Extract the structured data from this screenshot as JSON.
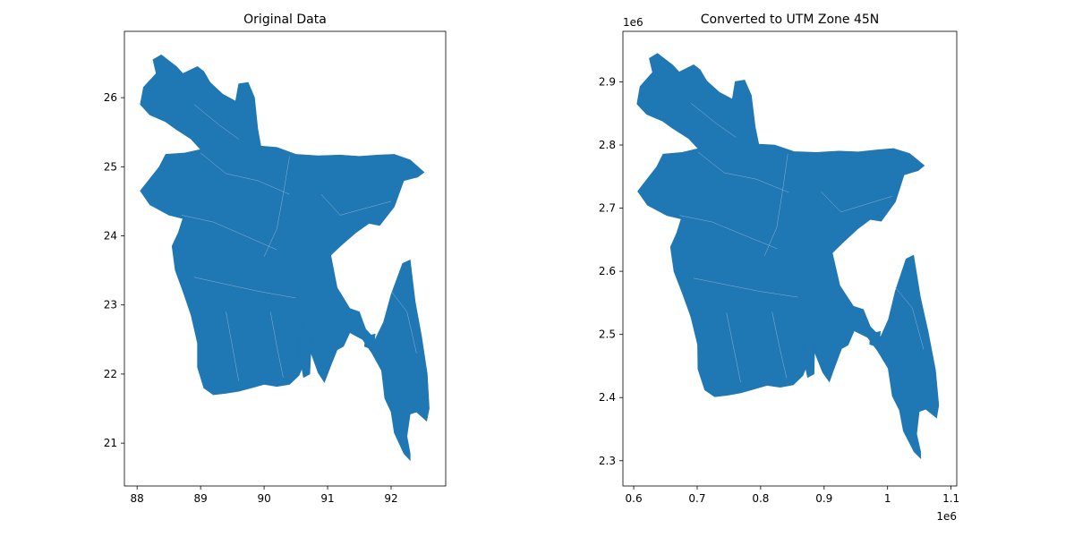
{
  "chart_data": [
    {
      "type": "map",
      "title": "Original Data",
      "xlabel": "",
      "ylabel": "",
      "xlim": [
        87.8,
        92.86
      ],
      "ylim": [
        20.38,
        26.96
      ],
      "xticks": [
        88,
        89,
        90,
        91,
        92
      ],
      "yticks": [
        21,
        22,
        23,
        24,
        25,
        26
      ],
      "offset_label": "",
      "x_offset_label": "",
      "fill_color": "#1f77b4",
      "boundary_color": "#8fb3d6",
      "outline": [
        [
          88.38,
          26.62
        ],
        [
          88.62,
          26.45
        ],
        [
          88.72,
          26.35
        ],
        [
          88.95,
          26.45
        ],
        [
          89.05,
          26.38
        ],
        [
          89.15,
          26.22
        ],
        [
          89.35,
          26.05
        ],
        [
          89.55,
          25.95
        ],
        [
          89.6,
          26.2
        ],
        [
          89.75,
          26.22
        ],
        [
          89.85,
          26.0
        ],
        [
          89.9,
          25.55
        ],
        [
          89.95,
          25.3
        ],
        [
          90.2,
          25.28
        ],
        [
          90.5,
          25.18
        ],
        [
          90.85,
          25.16
        ],
        [
          91.2,
          25.17
        ],
        [
          91.5,
          25.15
        ],
        [
          91.8,
          25.17
        ],
        [
          92.05,
          25.18
        ],
        [
          92.3,
          25.1
        ],
        [
          92.52,
          24.92
        ],
        [
          92.42,
          24.85
        ],
        [
          92.2,
          24.8
        ],
        [
          92.05,
          24.42
        ],
        [
          91.82,
          24.15
        ],
        [
          91.65,
          24.18
        ],
        [
          91.45,
          24.05
        ],
        [
          91.2,
          23.85
        ],
        [
          91.05,
          23.72
        ],
        [
          91.15,
          23.25
        ],
        [
          91.35,
          22.95
        ],
        [
          91.5,
          22.9
        ],
        [
          91.6,
          22.65
        ],
        [
          91.75,
          22.5
        ],
        [
          91.88,
          22.75
        ],
        [
          92.0,
          23.15
        ],
        [
          92.18,
          23.6
        ],
        [
          92.3,
          23.65
        ],
        [
          92.38,
          23.05
        ],
        [
          92.48,
          22.55
        ],
        [
          92.57,
          22.0
        ],
        [
          92.6,
          21.5
        ],
        [
          92.56,
          21.32
        ],
        [
          92.4,
          21.45
        ],
        [
          92.3,
          21.42
        ],
        [
          92.25,
          21.1
        ],
        [
          92.3,
          20.85
        ],
        [
          92.3,
          20.75
        ],
        [
          92.2,
          20.85
        ],
        [
          92.05,
          21.15
        ],
        [
          92.0,
          21.45
        ],
        [
          91.9,
          21.65
        ],
        [
          91.85,
          22.05
        ],
        [
          91.7,
          22.3
        ],
        [
          91.55,
          22.5
        ],
        [
          91.35,
          22.6
        ],
        [
          91.25,
          22.4
        ],
        [
          91.15,
          22.35
        ],
        [
          91.05,
          22.12
        ],
        [
          90.95,
          21.88
        ],
        [
          90.85,
          22.02
        ],
        [
          90.72,
          22.35
        ],
        [
          90.55,
          21.98
        ],
        [
          90.4,
          21.85
        ],
        [
          90.2,
          21.82
        ],
        [
          90.0,
          21.85
        ],
        [
          89.8,
          21.8
        ],
        [
          89.6,
          21.75
        ],
        [
          89.4,
          21.72
        ],
        [
          89.2,
          21.7
        ],
        [
          89.05,
          21.8
        ],
        [
          88.95,
          22.1
        ],
        [
          88.95,
          22.45
        ],
        [
          88.85,
          22.85
        ],
        [
          88.72,
          23.2
        ],
        [
          88.6,
          23.5
        ],
        [
          88.55,
          23.85
        ],
        [
          88.65,
          24.05
        ],
        [
          88.72,
          24.25
        ],
        [
          88.5,
          24.3
        ],
        [
          88.2,
          24.45
        ],
        [
          88.05,
          24.65
        ],
        [
          88.22,
          24.85
        ],
        [
          88.35,
          25.0
        ],
        [
          88.45,
          25.18
        ],
        [
          88.75,
          25.2
        ],
        [
          89.0,
          25.25
        ],
        [
          88.85,
          25.4
        ],
        [
          88.6,
          25.55
        ],
        [
          88.45,
          25.65
        ],
        [
          88.2,
          25.75
        ],
        [
          88.05,
          25.9
        ],
        [
          88.1,
          26.15
        ],
        [
          88.3,
          26.35
        ],
        [
          88.25,
          26.55
        ],
        [
          88.38,
          26.62
        ]
      ],
      "islands": [
        [
          [
            91.6,
            22.55
          ],
          [
            91.75,
            22.58
          ],
          [
            91.72,
            22.35
          ],
          [
            91.58,
            22.4
          ],
          [
            91.6,
            22.55
          ]
        ],
        [
          [
            90.6,
            22.75
          ],
          [
            90.75,
            22.6
          ],
          [
            90.72,
            22.0
          ],
          [
            90.62,
            21.95
          ],
          [
            90.55,
            22.3
          ],
          [
            90.6,
            22.75
          ]
        ]
      ]
    },
    {
      "type": "map",
      "title": "Converted to UTM Zone 45N",
      "xlabel": "",
      "ylabel": "",
      "xlim": [
        0.583,
        1.109
      ],
      "ylim": [
        2.26,
        2.98
      ],
      "xticks": [
        0.6,
        0.7,
        0.8,
        0.9,
        1.0,
        1.1
      ],
      "yticks": [
        2.3,
        2.4,
        2.5,
        2.6,
        2.7,
        2.8,
        2.9
      ],
      "offset_label": "1e6",
      "x_offset_label": "1e6",
      "fill_color": "#1f77b4",
      "boundary_color": "#8fb3d6"
    }
  ]
}
